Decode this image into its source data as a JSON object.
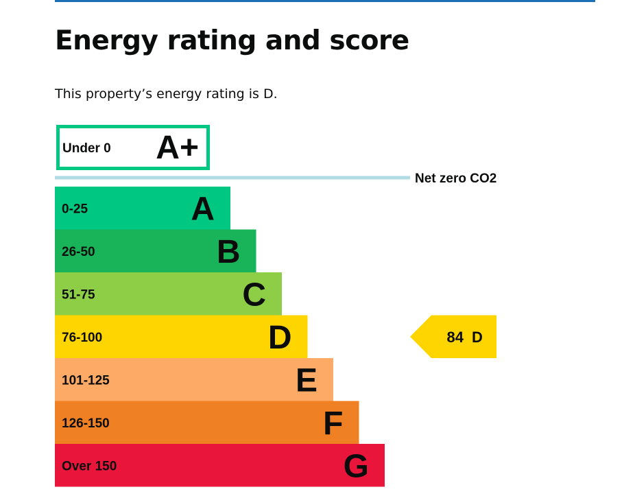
{
  "page": {
    "title": "Energy rating and score",
    "summary": "This property’s energy rating is D."
  },
  "chart_data": {
    "type": "bar",
    "title": "Energy rating and score",
    "categories": [
      "A+",
      "A",
      "B",
      "C",
      "D",
      "E",
      "F",
      "G"
    ],
    "bands": [
      {
        "letter": "A+",
        "range": "Under 0",
        "color": "#00c781",
        "outline": true
      },
      {
        "letter": "A",
        "range": "0-25",
        "color": "#00c781",
        "outline": false
      },
      {
        "letter": "B",
        "range": "26-50",
        "color": "#19b459",
        "outline": false
      },
      {
        "letter": "C",
        "range": "51-75",
        "color": "#8dce46",
        "outline": false
      },
      {
        "letter": "D",
        "range": "76-100",
        "color": "#ffd500",
        "outline": false
      },
      {
        "letter": "E",
        "range": "101-125",
        "color": "#fcaa65",
        "outline": false
      },
      {
        "letter": "F",
        "range": "126-150",
        "color": "#ef8023",
        "outline": false
      },
      {
        "letter": "G",
        "range": "Over 150",
        "color": "#e9153b",
        "outline": false
      }
    ],
    "net_zero": {
      "label": "Net zero CO2",
      "color": "#b1dce5"
    },
    "current": {
      "score": "84",
      "letter": "D",
      "color": "#ffd500"
    }
  }
}
